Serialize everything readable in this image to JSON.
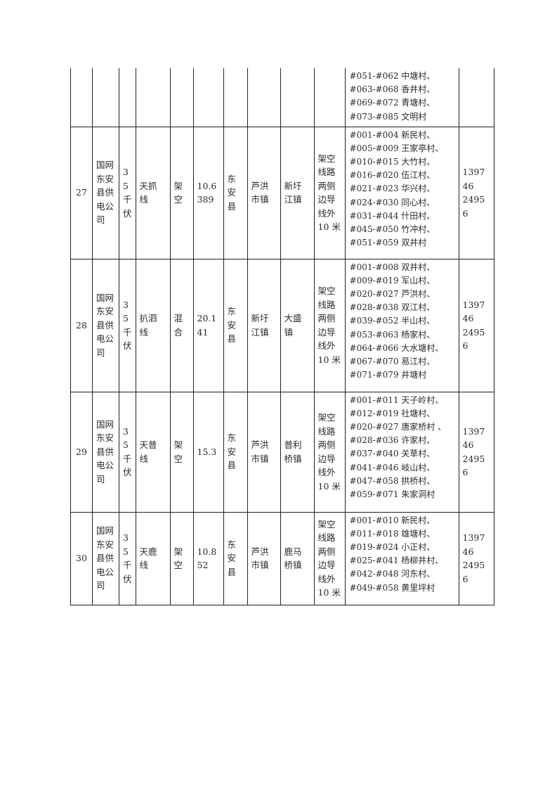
{
  "rows": [
    {
      "index": "",
      "company": "",
      "voltage": "",
      "line_name": "",
      "type": "",
      "length": "",
      "county": "",
      "from_town": "",
      "to_town": "",
      "scope": "",
      "villages": [
        "#051-#062 中塘村、",
        "#063-#068 香井村、",
        "#069-#072 青塘村、",
        "#073-#085 文明村"
      ],
      "phone": ""
    },
    {
      "index": "27",
      "company": "国网\n东安\n县供\n电公\n司",
      "voltage": "3\n5\n千\n伏",
      "line_name": "天抓\n线",
      "type": "架\n空",
      "length": "10.6\n389",
      "county": "东\n安\n县",
      "from_town": "芦洪\n市镇",
      "to_town": "新圩\n江镇",
      "scope": "架空\n线路\n两侧\n边导\n线外\n10 米",
      "villages": [
        "#001-#004 新民村、",
        "#005-#009 王家亭村、",
        "#010-#015 大竹村、",
        "#016-#020 伍江村、",
        "#021-#023 华兴村、",
        "#024-#030 同心村、",
        "#031-#044 什田村、",
        "#045-#050 竹冲村、",
        "#051-#059 双井村"
      ],
      "phone": "139746\n24956"
    },
    {
      "index": "28",
      "company": "国网\n东安\n县供\n电公\n司",
      "voltage": "3\n5\n千\n伏",
      "line_name": "扒泗\n线",
      "type": "混\n合",
      "length": "20.1\n41",
      "county": "东\n安\n县",
      "from_town": "新圩\n江镇",
      "to_town": "大盛\n镇",
      "scope": "架空\n线路\n两侧\n边导\n线外\n10 米",
      "villages": [
        "#001-#008 双井村、",
        "#009-#019 军山村、",
        "#020-#027 芦洪村、",
        "#028-#038 双江村、",
        "#039-#052 半山村、",
        "#053-#063 杨家村、",
        "#064-#066 大水塘村、",
        "#067-#070 易江村、",
        "#071-#079 井塘村"
      ],
      "phone": "139746\n24956"
    },
    {
      "index": "29",
      "company": "国网\n东安\n县供\n电公\n司",
      "voltage": "3\n5\n千\n伏",
      "line_name": "天普\n线",
      "type": "架\n空",
      "length": "15.3",
      "county": "东\n安\n县",
      "from_town": "芦洪\n市镇",
      "to_town": "普利\n桥镇",
      "scope": "架空\n线路\n两侧\n边导\n线外\n10 米",
      "villages": [
        "#001-#011 天子岭村、",
        "#012-#019 社塘村、",
        "#020-#027 唐家桥村 、",
        "#028-#036 许家村、",
        "#037-#040 关草村、",
        "#041-#046 岐山村、",
        "#047-#058 拱桥村、",
        "#059-#071 朱家洞村"
      ],
      "phone": "139746\n24956"
    },
    {
      "index": "30",
      "company": "国网\n东安\n县供\n电公\n司",
      "voltage": "3\n5\n千\n伏",
      "line_name": "天鹿\n线",
      "type": "架\n空",
      "length": "10.8\n52",
      "county": "东\n安\n县",
      "from_town": "芦洪\n市镇",
      "to_town": "鹿马\n桥镇",
      "scope": "架空\n线路\n两侧\n边导\n线外\n10 米",
      "villages": [
        "#001-#010 新民村、",
        "#011-#018 雄塘村、",
        "#019-#024 小正村、",
        "#025-#041 杨柳井村、",
        "#042-#048 河东村、",
        "#049-#058 黄里坪村"
      ],
      "phone": "139746\n24956"
    }
  ]
}
